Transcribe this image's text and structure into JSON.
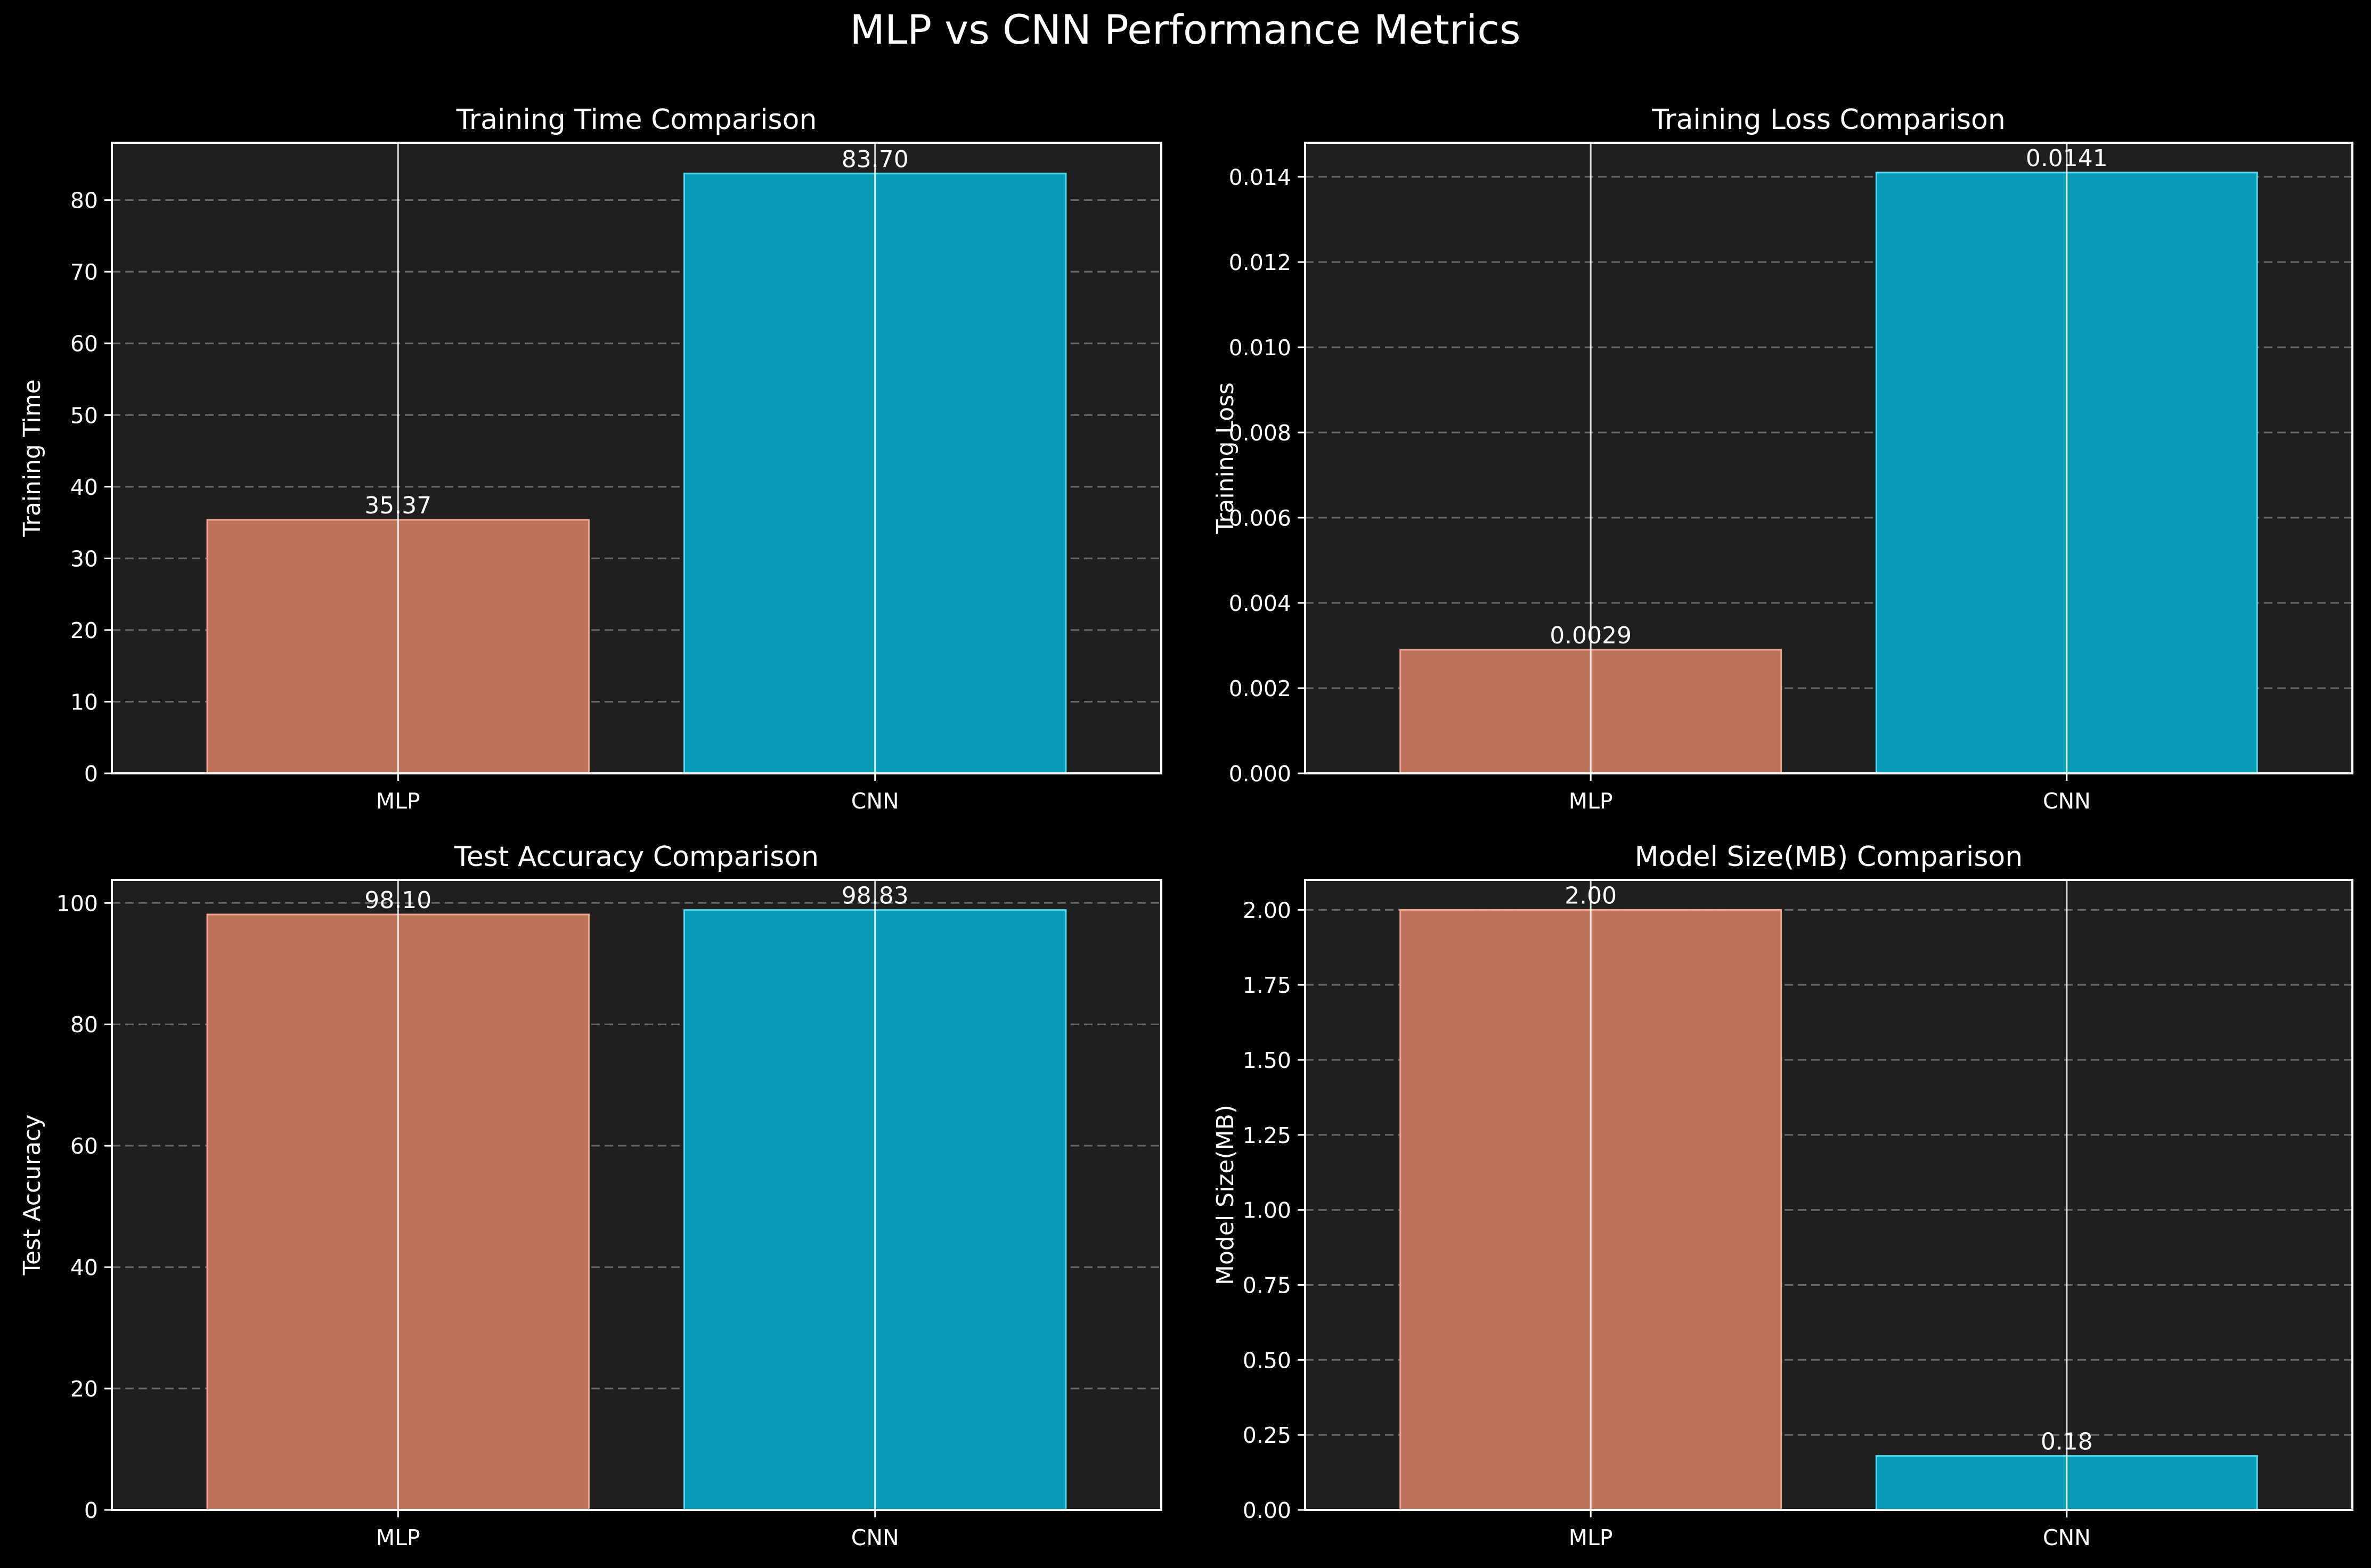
{
  "suptitle": "MLP vs CNN Performance Metrics",
  "colors": {
    "figure_bg": "#000000",
    "axes_bg": "#1f1f1f",
    "mlp_bar": "#bd735a",
    "mlp_edge": "#f0a58e",
    "cnn_bar": "#079bb8",
    "cnn_edge": "#50dcf0",
    "text": "#ffffff",
    "grid": "#6a6a6a"
  },
  "chart_data": [
    {
      "type": "bar",
      "title": "Training Time Comparison",
      "xlabel": "",
      "ylabel": "Training Time",
      "categories": [
        "MLP",
        "CNN"
      ],
      "values": [
        35.37,
        83.7
      ],
      "value_labels": [
        "35.37",
        "83.70"
      ],
      "ylim": [
        0,
        88
      ],
      "yticks": [
        0,
        10,
        20,
        30,
        40,
        50,
        60,
        70,
        80
      ],
      "ytick_labels": [
        "0",
        "10",
        "20",
        "30",
        "40",
        "50",
        "60",
        "70",
        "80"
      ],
      "grid": "y dashed",
      "legend": "none"
    },
    {
      "type": "bar",
      "title": "Training Loss Comparison",
      "xlabel": "",
      "ylabel": "Training Loss",
      "categories": [
        "MLP",
        "CNN"
      ],
      "values": [
        0.0029,
        0.0141
      ],
      "value_labels": [
        "0.0029",
        "0.0141"
      ],
      "ylim": [
        0,
        0.0148
      ],
      "yticks": [
        0,
        0.002,
        0.004,
        0.006,
        0.008,
        0.01,
        0.012,
        0.014
      ],
      "ytick_labels": [
        "0.000",
        "0.002",
        "0.004",
        "0.006",
        "0.008",
        "0.010",
        "0.012",
        "0.014"
      ],
      "grid": "y dashed",
      "legend": "none"
    },
    {
      "type": "bar",
      "title": "Test Accuracy Comparison",
      "xlabel": "",
      "ylabel": "Test Accuracy",
      "categories": [
        "MLP",
        "CNN"
      ],
      "values": [
        98.1,
        98.83
      ],
      "value_labels": [
        "98.10",
        "98.83"
      ],
      "ylim": [
        0,
        103.8
      ],
      "yticks": [
        0,
        20,
        40,
        60,
        80,
        100
      ],
      "ytick_labels": [
        "0",
        "20",
        "40",
        "60",
        "80",
        "100"
      ],
      "grid": "y dashed",
      "legend": "none"
    },
    {
      "type": "bar",
      "title": "Model Size(MB) Comparison",
      "xlabel": "",
      "ylabel": "Model Size(MB)",
      "categories": [
        "MLP",
        "CNN"
      ],
      "values": [
        2.0,
        0.18
      ],
      "value_labels": [
        "2.00",
        "0.18"
      ],
      "ylim": [
        0,
        2.1
      ],
      "yticks": [
        0,
        0.25,
        0.5,
        0.75,
        1.0,
        1.25,
        1.5,
        1.75,
        2.0
      ],
      "ytick_labels": [
        "0.00",
        "0.25",
        "0.50",
        "0.75",
        "1.00",
        "1.25",
        "1.50",
        "1.75",
        "2.00"
      ],
      "grid": "y dashed",
      "legend": "none"
    }
  ]
}
